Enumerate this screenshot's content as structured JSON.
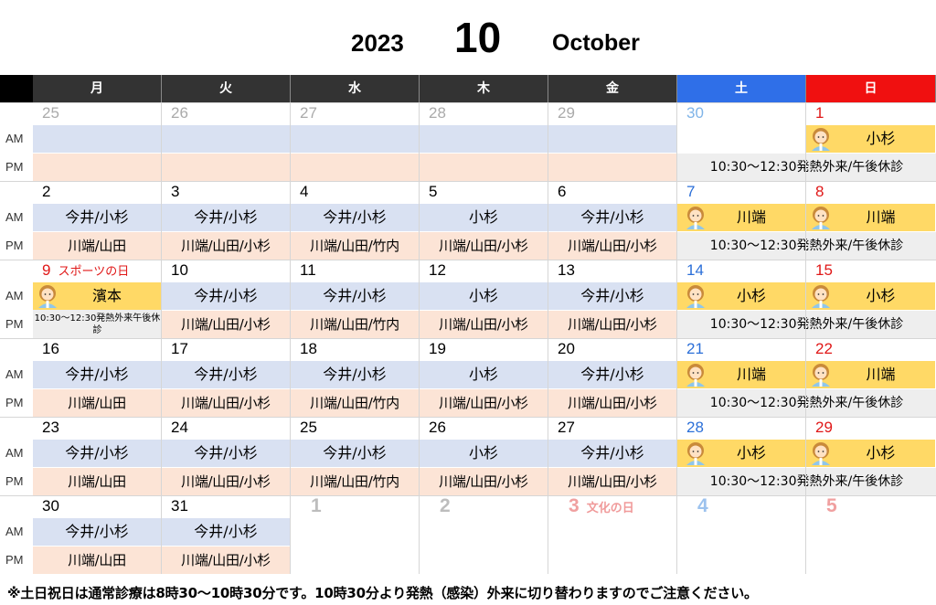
{
  "header": {
    "year": "2023",
    "month": "10",
    "month_name": "October"
  },
  "weekdays": [
    "月",
    "火",
    "水",
    "木",
    "金",
    "土",
    "日"
  ],
  "row_labels": {
    "am": "AM",
    "pm": "PM"
  },
  "weeks": [
    {
      "days": [
        "25",
        "26",
        "27",
        "28",
        "29",
        "30",
        "1"
      ],
      "am": [
        "",
        "",
        "",
        "",
        ""
      ],
      "pm": [
        "",
        "",
        "",
        "",
        ""
      ],
      "sat_am": "",
      "sun_am": "小杉",
      "weekend_pm": "10:30～12:30発熱外来/午後休診"
    },
    {
      "days": [
        "2",
        "3",
        "4",
        "5",
        "6",
        "7",
        "8"
      ],
      "am": [
        "今井/小杉",
        "今井/小杉",
        "今井/小杉",
        "小杉",
        "今井/小杉"
      ],
      "pm": [
        "川端/山田",
        "川端/山田/小杉",
        "川端/山田/竹内",
        "川端/山田/小杉",
        "川端/山田/小杉"
      ],
      "sat_am": "川端",
      "sun_am": "川端",
      "weekend_pm": "10:30～12:30発熱外来/午後休診"
    },
    {
      "days": [
        "9",
        "10",
        "11",
        "12",
        "13",
        "14",
        "15"
      ],
      "holiday": "スポーツの日",
      "am": [
        "濱本",
        "今井/小杉",
        "今井/小杉",
        "小杉",
        "今井/小杉"
      ],
      "pm": [
        "10:30～12:30発熱外来午後休診",
        "川端/山田/小杉",
        "川端/山田/竹内",
        "川端/山田/小杉",
        "川端/山田/小杉"
      ],
      "sat_am": "小杉",
      "sun_am": "小杉",
      "weekend_pm": "10:30～12:30発熱外来/午後休診"
    },
    {
      "days": [
        "16",
        "17",
        "18",
        "19",
        "20",
        "21",
        "22"
      ],
      "am": [
        "今井/小杉",
        "今井/小杉",
        "今井/小杉",
        "小杉",
        "今井/小杉"
      ],
      "pm": [
        "川端/山田",
        "川端/山田/小杉",
        "川端/山田/竹内",
        "川端/山田/小杉",
        "川端/山田/小杉"
      ],
      "sat_am": "川端",
      "sun_am": "川端",
      "weekend_pm": "10:30～12:30発熱外来/午後休診"
    },
    {
      "days": [
        "23",
        "24",
        "25",
        "26",
        "27",
        "28",
        "29"
      ],
      "am": [
        "今井/小杉",
        "今井/小杉",
        "今井/小杉",
        "小杉",
        "今井/小杉"
      ],
      "pm": [
        "川端/山田",
        "川端/山田/小杉",
        "川端/山田/竹内",
        "川端/山田/小杉",
        "川端/山田/小杉"
      ],
      "sat_am": "小杉",
      "sun_am": "小杉",
      "weekend_pm": "10:30～12:30発熱外来/午後休診"
    },
    {
      "days": [
        "30",
        "31",
        "1",
        "2",
        "3",
        "4",
        "5"
      ],
      "holiday": "文化の日",
      "am": [
        "今井/小杉",
        "今井/小杉",
        "",
        "",
        ""
      ],
      "pm": [
        "川端/山田",
        "川端/山田/小杉",
        "",
        "",
        ""
      ],
      "sat_am": "",
      "sun_am": "",
      "weekend_pm": ""
    }
  ],
  "footnote": "※土日祝日は通常診療は8時30～10時30分です。10時30分より発熱（感染）外来に切り替わりますのでご注意ください。",
  "colors": {
    "header_dark": "#333333",
    "saturday": "#2f6fe8",
    "sunday": "#f01010",
    "am": "#d9e1f2",
    "pm": "#fce4d6",
    "weekend": "#ffd966",
    "weekend_pm": "#eeeeee"
  },
  "icons": {
    "doctor": "doctor-avatar-icon"
  }
}
